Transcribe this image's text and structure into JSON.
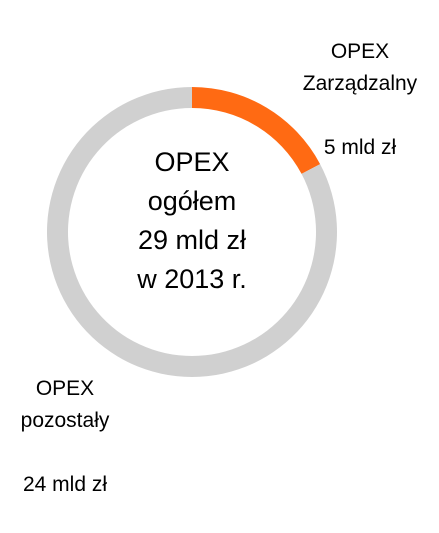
{
  "chart_data": {
    "type": "donut",
    "categories": [
      "OPEX\nZarządzalny",
      "OPEX\npozostały"
    ],
    "values": [
      5,
      24
    ],
    "value_labels": [
      "5 mld zł",
      "24 mld zł"
    ],
    "colors": [
      "#ff6a13",
      "#d0d0d0"
    ],
    "center_label": "OPEX\nogółem\n29 mld zł\nw 2013 r."
  }
}
